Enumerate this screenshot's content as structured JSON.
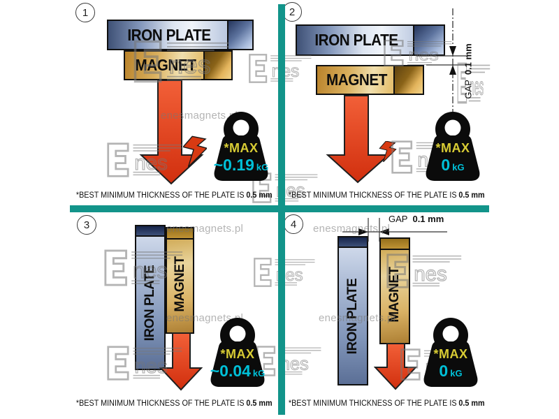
{
  "labels": {
    "plate": "IRON PLATE",
    "magnet": "MAGNET",
    "max": "*MAX",
    "unit": "kG",
    "gap": "GAP",
    "gap_value": "0.1 mm"
  },
  "footnote": {
    "text": "*BEST MINIMUM THICKNESS OF THE PLATE IS",
    "bold": "0.5 mm"
  },
  "panels": [
    {
      "number": "1",
      "max_value": "~0.19"
    },
    {
      "number": "2",
      "max_value": "0"
    },
    {
      "number": "3",
      "max_value": "~0.04"
    },
    {
      "number": "4",
      "max_value": "0"
    }
  ],
  "watermark": {
    "logo_text": "nes",
    "url": "enesmagnets.pl"
  },
  "colors": {
    "divider_teal": "#12948A",
    "max_yellow": "#D8CC34",
    "value_cyan": "#00C0D8",
    "arrow_red": "#E0401A",
    "plate_blue": "#8296BA",
    "magnet_gold": "#DAB05E",
    "weight_black": "#0B0B0B"
  }
}
